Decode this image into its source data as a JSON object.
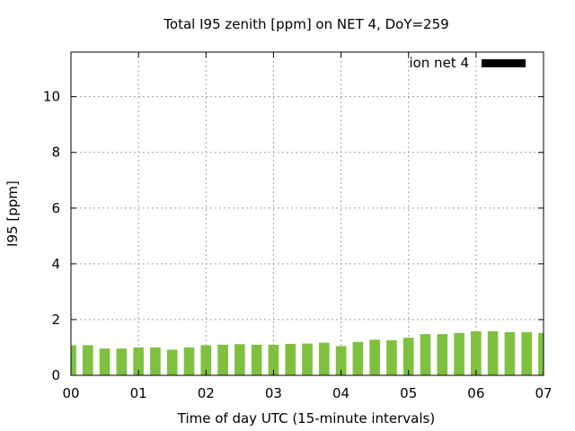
{
  "chart_data": {
    "type": "bar",
    "title": "Total I95 zenith [ppm] on NET 4, DoY=259",
    "xlabel": "Time of day UTC (15-minute intervals)",
    "ylabel": "I95 [ppm]",
    "xlim": [
      0,
      7
    ],
    "ylim": [
      0,
      11.6
    ],
    "xticks": [
      {
        "value": 0,
        "label": "00"
      },
      {
        "value": 1,
        "label": "01"
      },
      {
        "value": 2,
        "label": "02"
      },
      {
        "value": 3,
        "label": "03"
      },
      {
        "value": 4,
        "label": "04"
      },
      {
        "value": 5,
        "label": "05"
      },
      {
        "value": 6,
        "label": "06"
      },
      {
        "value": 7,
        "label": "07"
      }
    ],
    "yticks": [
      {
        "value": 0,
        "label": "0"
      },
      {
        "value": 2,
        "label": "2"
      },
      {
        "value": 4,
        "label": "4"
      },
      {
        "value": 6,
        "label": "6"
      },
      {
        "value": 8,
        "label": "8"
      },
      {
        "value": 10,
        "label": "10"
      }
    ],
    "grid": true,
    "legend_position": "top-right",
    "series": [
      {
        "name": "ion net 4",
        "legend_color": "#000000",
        "bar_color": "#80c040",
        "x": [
          0,
          0.25,
          0.5,
          0.75,
          1.0,
          1.25,
          1.5,
          1.75,
          2.0,
          2.25,
          2.5,
          2.75,
          3.0,
          3.25,
          3.5,
          3.75,
          4.0,
          4.25,
          4.5,
          4.75,
          5.0,
          5.25,
          5.5,
          5.75,
          6.0,
          6.25,
          6.5,
          6.75,
          7.0
        ],
        "values": [
          1.08,
          1.08,
          0.96,
          0.96,
          1.0,
          1.0,
          0.92,
          1.0,
          1.08,
          1.1,
          1.12,
          1.1,
          1.1,
          1.13,
          1.14,
          1.17,
          1.05,
          1.2,
          1.28,
          1.26,
          1.35,
          1.48,
          1.48,
          1.52,
          1.58,
          1.58,
          1.55,
          1.55,
          1.52
        ]
      }
    ]
  }
}
